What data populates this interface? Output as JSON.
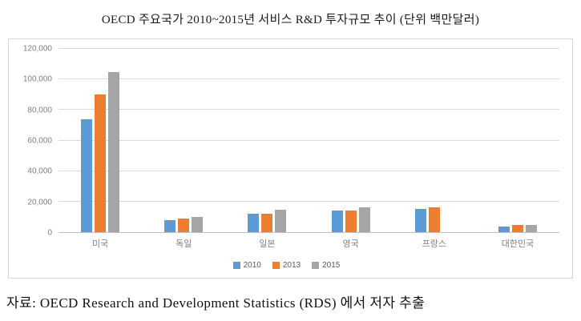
{
  "title": "OECD 주요국가 2010~2015년 서비스 R&D 투자규모 추이 (단위 백만달러)",
  "footer": "자료: OECD Research and Development Statistics (RDS) 에서 저자 추출",
  "chart_data": {
    "type": "bar",
    "title": "OECD 주요국가 2010~2015년 서비스 R&D 투자규모 추이 (단위 백만달러)",
    "categories": [
      "미국",
      "독일",
      "일본",
      "영국",
      "프랑스",
      "대한민국"
    ],
    "series": [
      {
        "name": "2010",
        "color": "#5B9BD5",
        "values": [
          74000,
          8000,
          12300,
          14300,
          15000,
          3600
        ]
      },
      {
        "name": "2013",
        "color": "#ED7D31",
        "values": [
          90000,
          8700,
          11800,
          14300,
          16000,
          4700
        ]
      },
      {
        "name": "2015",
        "color": "#A5A5A5",
        "values": [
          105000,
          10000,
          14500,
          16500,
          null,
          4700
        ]
      }
    ],
    "xlabel": "",
    "ylabel": "",
    "ylim": [
      0,
      120000
    ],
    "ytick_step": 20000,
    "ytick_labels": [
      "0",
      "20,000",
      "40,000",
      "60,000",
      "80,000",
      "100,000",
      "120,000"
    ],
    "grid": true,
    "legend_position": "bottom"
  }
}
